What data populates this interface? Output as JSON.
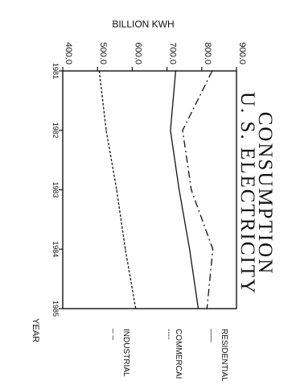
{
  "chart_data": {
    "type": "line",
    "title_line1": "U. S. ELECTRICITY",
    "title_line2": "CONSUMPTION",
    "xlabel": "YEAR",
    "ylabel": "BILLION KWH",
    "x": [
      1981,
      1982,
      1983,
      1984,
      1985
    ],
    "x_tick_labels": [
      "1981",
      "1982",
      "1983",
      "1984",
      "1985"
    ],
    "ylim": [
      400.0,
      900.0
    ],
    "y_ticks": [
      400.0,
      500.0,
      600.0,
      700.0,
      800.0,
      900.0
    ],
    "y_tick_labels": [
      "400.0",
      "500.0",
      "600.0",
      "700.0",
      "800.0",
      "900.0"
    ],
    "orientation": "rotated 90 degrees clockwise",
    "legend_position": "bottom-right",
    "series": [
      {
        "name": "RESIDENTIAL",
        "legend_sample": "___",
        "values": [
          830,
          745,
          770,
          832,
          815
        ],
        "style": "dash-dot"
      },
      {
        "name": "COMMERCAI",
        "legend_sample": "----",
        "values": [
          725,
          710,
          735,
          765,
          790
        ],
        "style": "solid"
      },
      {
        "name": "INDUSTRIAL",
        "legend_sample": "_ _",
        "values": [
          505,
          525,
          555,
          580,
          610
        ],
        "style": "dotted"
      }
    ]
  }
}
